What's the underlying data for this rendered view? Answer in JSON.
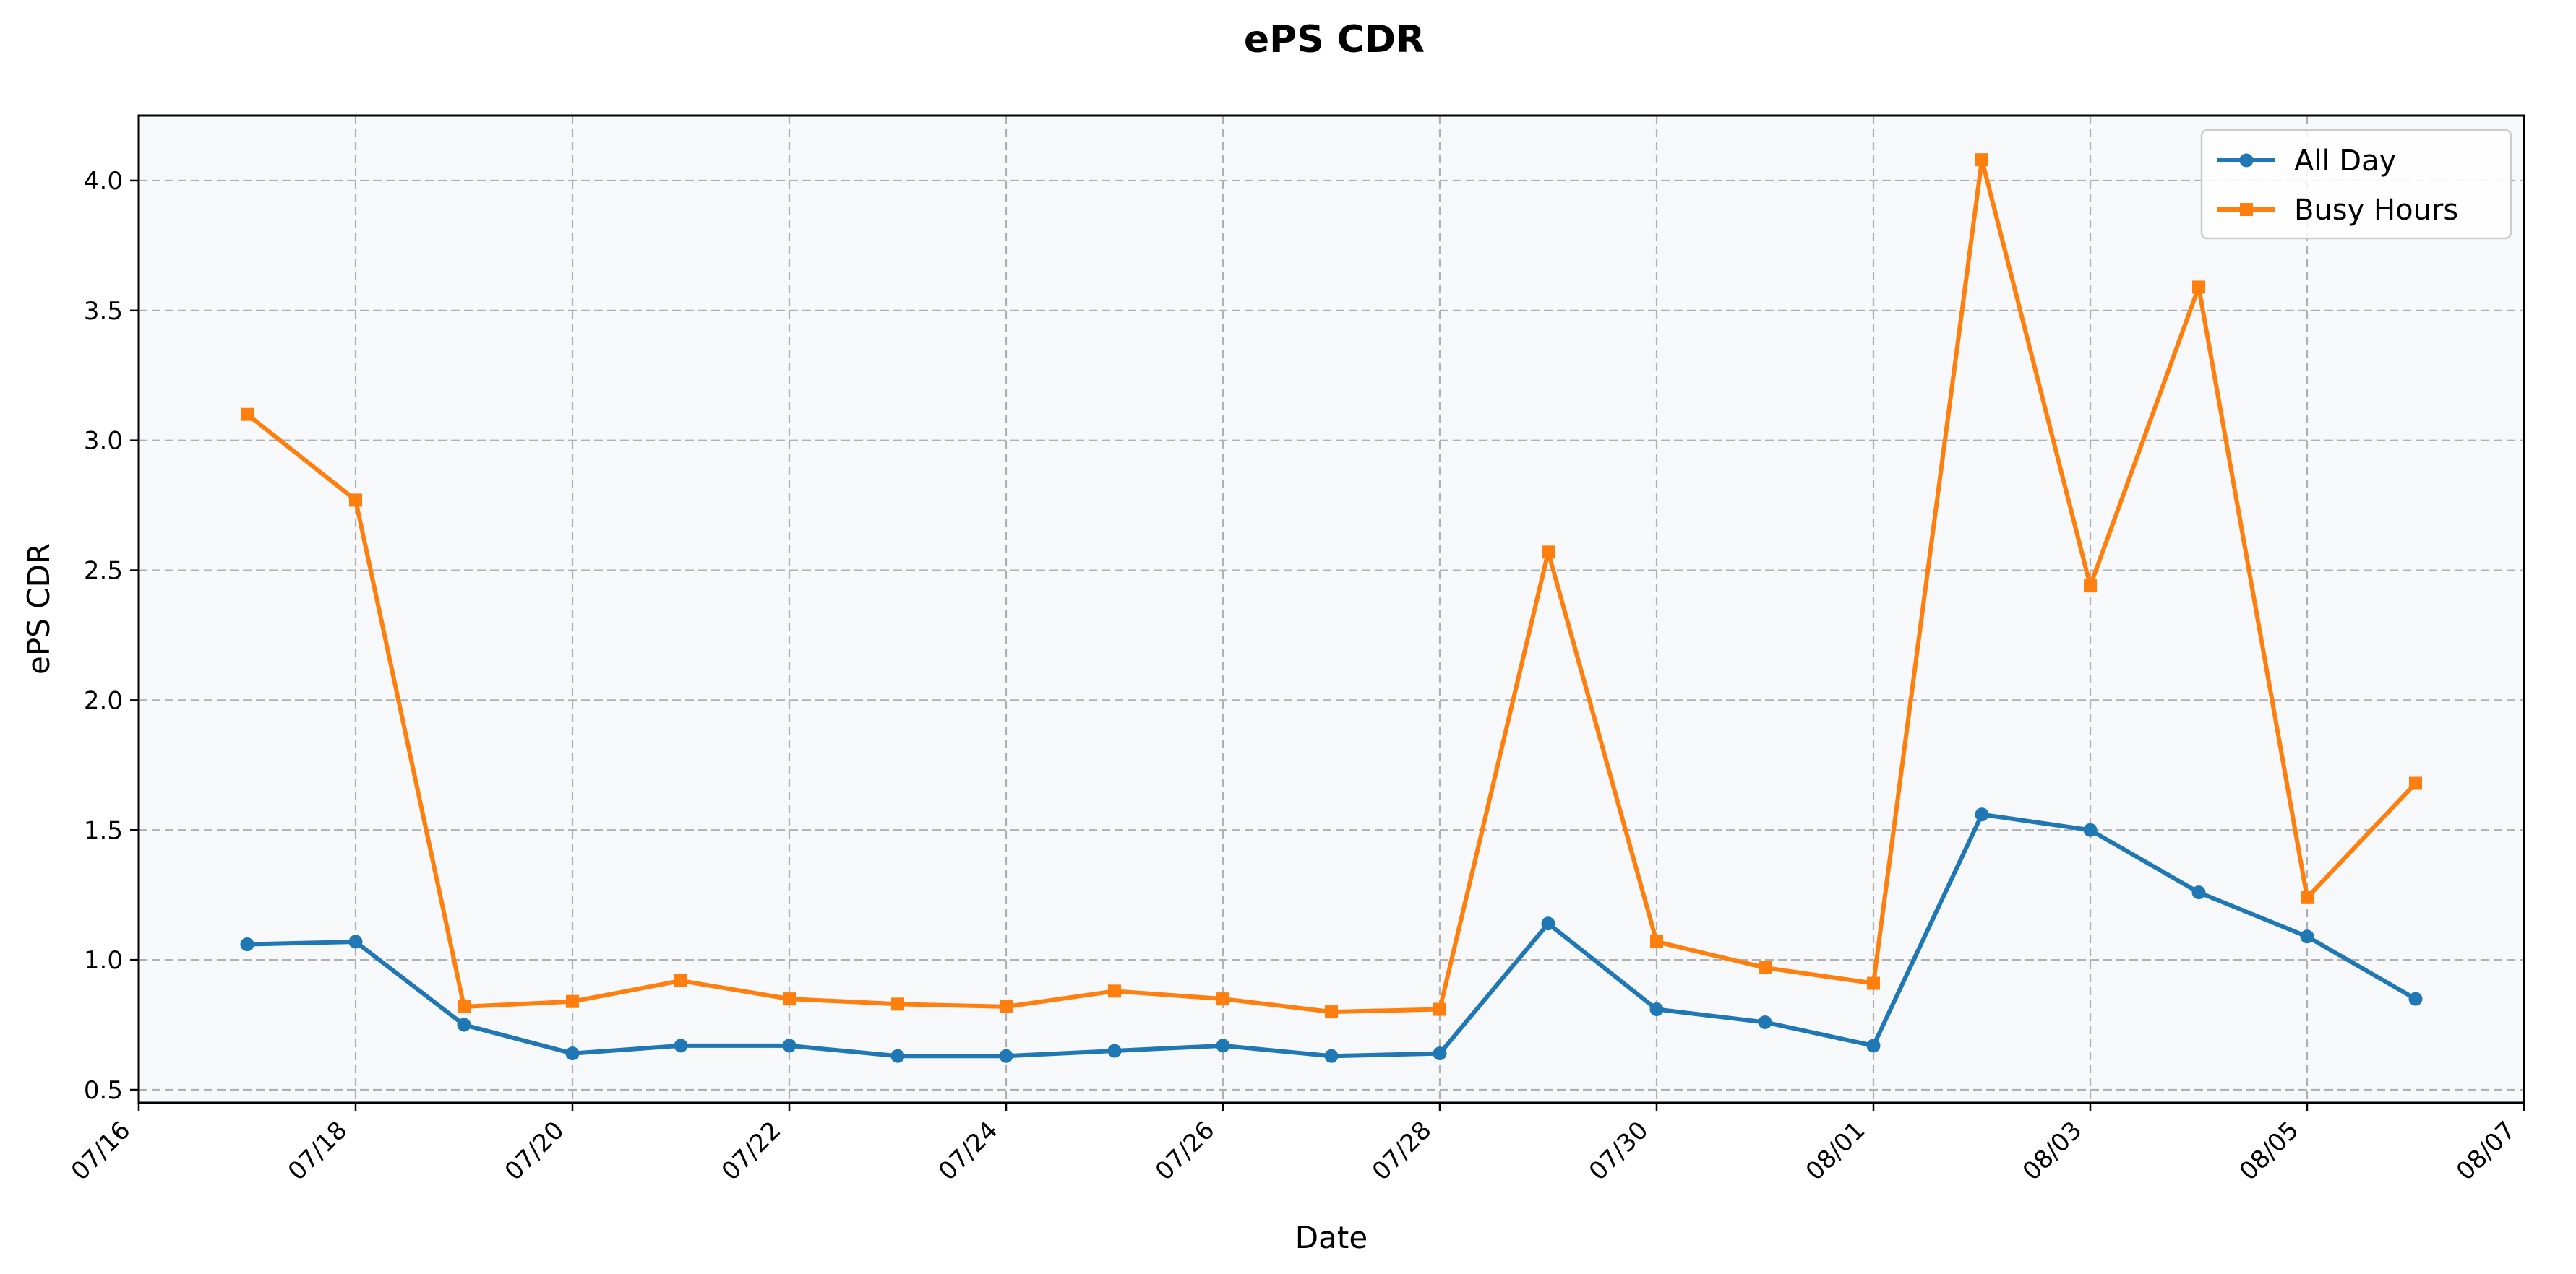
{
  "chart_data": {
    "type": "line",
    "title": "ePS CDR",
    "xlabel": "Date",
    "ylabel": "ePS CDR",
    "x_tick_labels": [
      "07/16",
      "07/18",
      "07/20",
      "07/22",
      "07/24",
      "07/26",
      "07/28",
      "07/30",
      "08/01",
      "08/03",
      "08/05",
      "08/07"
    ],
    "y_tick_labels": [
      "0.5",
      "1.0",
      "1.5",
      "2.0",
      "2.5",
      "3.0",
      "3.5",
      "4.0"
    ],
    "xlim": [
      "07/16",
      "08/07"
    ],
    "ylim": [
      0.45,
      4.25
    ],
    "grid": true,
    "legend_position": "top-right",
    "x": [
      "07/17",
      "07/18",
      "07/19",
      "07/20",
      "07/21",
      "07/22",
      "07/23",
      "07/24",
      "07/25",
      "07/26",
      "07/27",
      "07/28",
      "07/29",
      "07/30",
      "07/31",
      "08/01",
      "08/02",
      "08/03",
      "08/04",
      "08/05",
      "08/06"
    ],
    "series": [
      {
        "name": "All Day",
        "color": "#1f77b4",
        "marker": "circle",
        "values": [
          1.06,
          1.07,
          0.75,
          0.64,
          0.67,
          0.67,
          0.63,
          0.63,
          0.65,
          0.67,
          0.63,
          0.64,
          1.14,
          0.81,
          0.76,
          0.67,
          1.56,
          1.5,
          1.26,
          1.09,
          0.85
        ]
      },
      {
        "name": "Busy Hours",
        "color": "#ff7f0e",
        "marker": "square",
        "values": [
          3.1,
          2.77,
          0.82,
          0.84,
          0.92,
          0.85,
          0.83,
          0.82,
          0.88,
          0.85,
          0.8,
          0.81,
          2.57,
          1.07,
          0.97,
          0.91,
          4.08,
          2.44,
          3.59,
          1.24,
          1.68
        ]
      }
    ]
  }
}
